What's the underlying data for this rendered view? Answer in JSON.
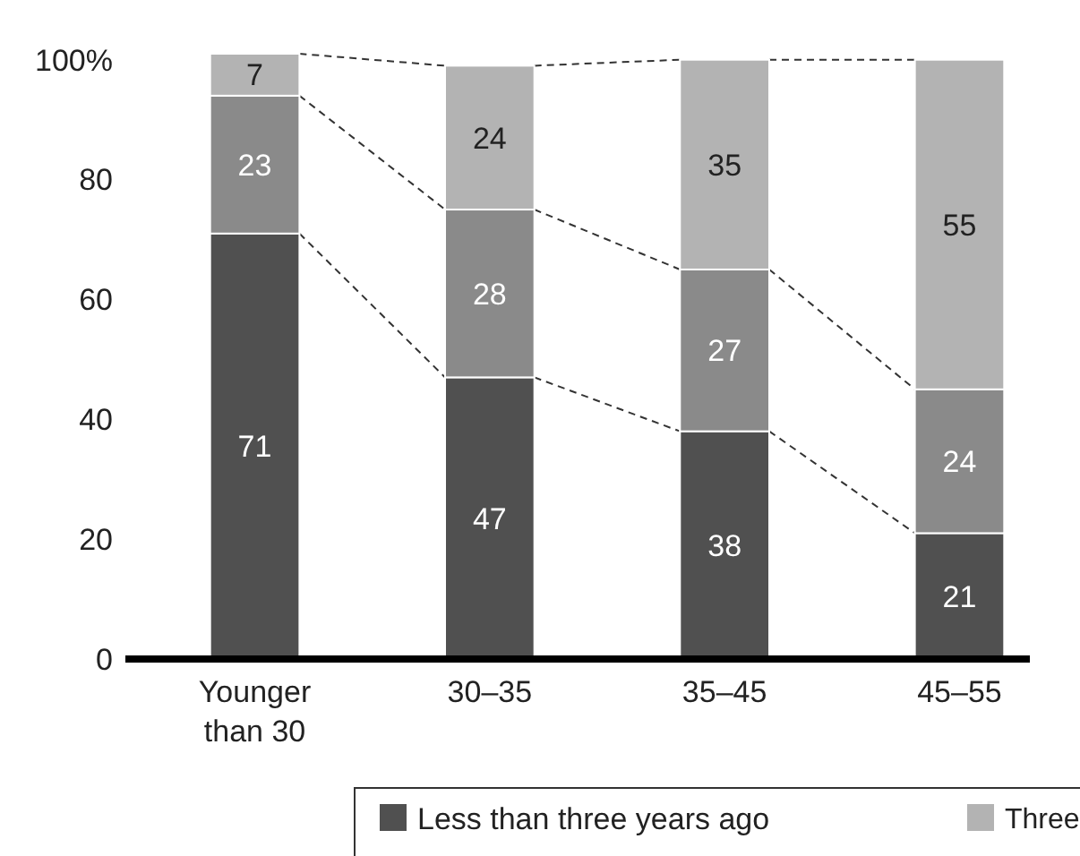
{
  "chart_data": {
    "type": "bar",
    "stacked": true,
    "categories": [
      "Younger than 30",
      "30–35",
      "35–45",
      "45–55"
    ],
    "series": [
      {
        "name": "Less than three years ago",
        "color": "#505050",
        "values": [
          71,
          47,
          38,
          21
        ]
      },
      {
        "color": "#8a8a8a",
        "values": [
          23,
          28,
          27,
          24
        ]
      },
      {
        "name": "Three",
        "color": "#b3b3b3",
        "values": [
          7,
          24,
          35,
          55
        ]
      }
    ],
    "ylim": [
      0,
      101
    ],
    "yticks": [
      0,
      20,
      40,
      60,
      80,
      {
        "value": 100,
        "label": "100%"
      }
    ],
    "data_labels": true,
    "legend": "bottom",
    "grid": false
  }
}
